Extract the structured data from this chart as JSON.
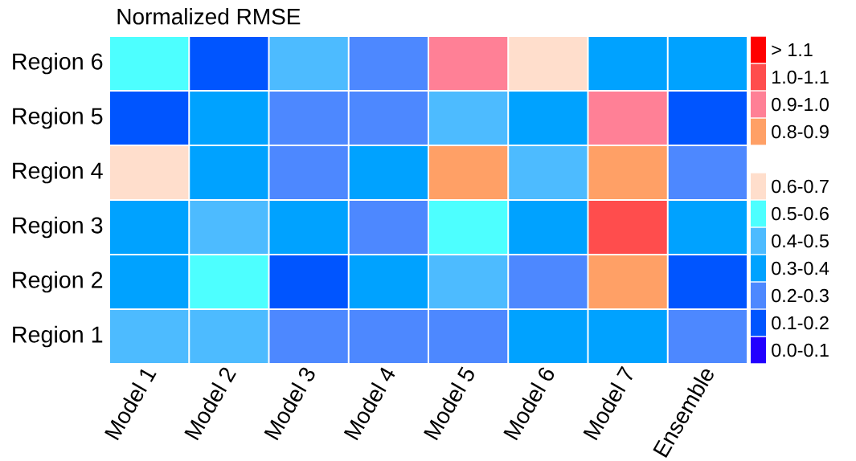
{
  "chart_data": {
    "type": "heatmap",
    "title": "Normalized RMSE",
    "categories": [
      "Model 1",
      "Model 2",
      "Model 3",
      "Model 4",
      "Model 5",
      "Model 6",
      "Model 7",
      "Ensemble"
    ],
    "y_categories": [
      "Region 6",
      "Region 5",
      "Region 4",
      "Region 3",
      "Region 2",
      "Region 1"
    ],
    "cells": [
      [
        0.55,
        0.15,
        0.45,
        0.25,
        0.95,
        0.65,
        0.35,
        0.35
      ],
      [
        0.15,
        0.35,
        0.25,
        0.25,
        0.45,
        0.35,
        0.95,
        0.15
      ],
      [
        0.65,
        0.35,
        0.25,
        0.35,
        0.85,
        0.45,
        0.85,
        0.25
      ],
      [
        0.35,
        0.45,
        0.35,
        0.25,
        0.55,
        0.35,
        1.05,
        0.35
      ],
      [
        0.35,
        0.55,
        0.15,
        0.35,
        0.45,
        0.25,
        0.85,
        0.15
      ],
      [
        0.45,
        0.45,
        0.25,
        0.25,
        0.25,
        0.35,
        0.35,
        0.25
      ]
    ],
    "clim": [
      0,
      1.2
    ],
    "cticks": [
      {
        "value": 0.05,
        "label": "0.0-0.1"
      },
      {
        "value": 0.15,
        "label": "0.1-0.2"
      },
      {
        "value": 0.25,
        "label": "0.2-0.3"
      },
      {
        "value": 0.35,
        "label": "0.3-0.4"
      },
      {
        "value": 0.45,
        "label": "0.4-0.5"
      },
      {
        "value": 0.55,
        "label": "0.5-0.6"
      },
      {
        "value": 0.65,
        "label": "0.6-0.7"
      },
      {
        "value": 0.85,
        "label": "0.8-0.9"
      },
      {
        "value": 0.95,
        "label": "0.9-1.0"
      },
      {
        "value": 1.05,
        "label": "1.0-1.1"
      },
      {
        "value": 1.15,
        "label": "> 1.1"
      }
    ]
  }
}
